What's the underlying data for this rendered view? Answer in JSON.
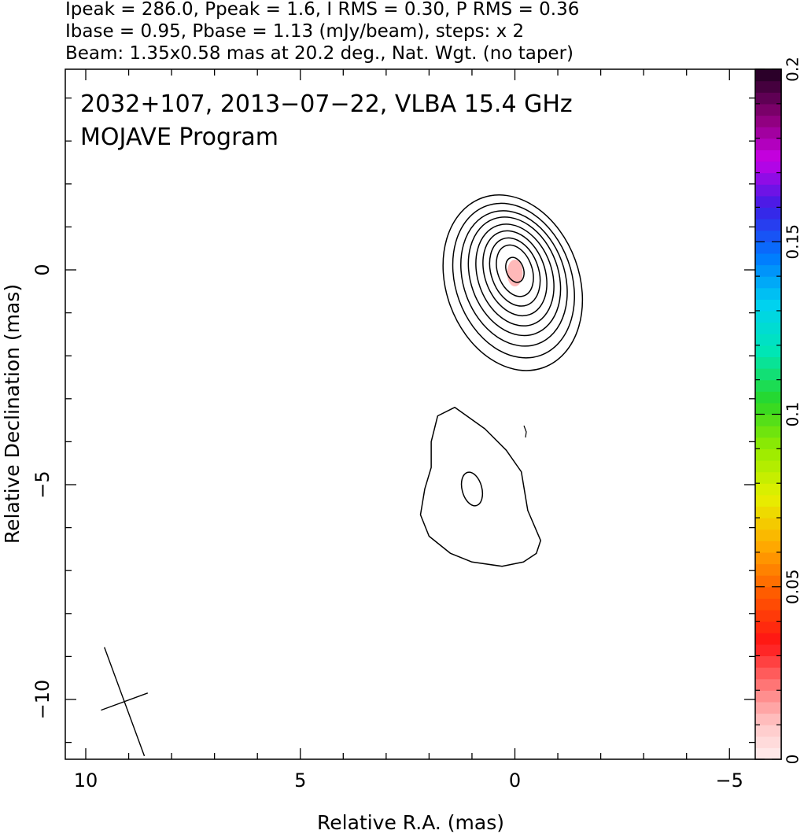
{
  "header": {
    "line1": "Ipeak = 286.0, Ppeak = 1.6, I RMS = 0.30, P RMS = 0.36",
    "line2": "Ibase = 0.95, Pbase = 1.13 (mJy/beam), steps: x 2",
    "line3": "Beam: 1.35x0.58 mas at 20.2 deg., Nat. Wgt. (no taper)"
  },
  "plot_title": {
    "line1": "2032+107, 2013−07−22, VLBA 15.4 GHz",
    "line2": "MOJAVE Program"
  },
  "chart_data": {
    "type": "contour",
    "xlabel": "Relative R.A. (mas)",
    "ylabel": "Relative Declination (mas)",
    "xlim": [
      10.5,
      -6.3
    ],
    "ylim": [
      -11.3,
      4.7
    ],
    "x_inverted": true,
    "x_ticks": [
      {
        "value": 10,
        "label": "10"
      },
      {
        "value": 5,
        "label": "5"
      },
      {
        "value": 0,
        "label": "0"
      },
      {
        "value": -5,
        "label": "−5"
      }
    ],
    "y_ticks": [
      {
        "value": 0,
        "label": "0"
      },
      {
        "value": -5,
        "label": "−5"
      },
      {
        "value": -10,
        "label": "−10"
      }
    ],
    "beam": {
      "major_mas": 1.35,
      "minor_mas": 0.58,
      "pa_deg": 20.2,
      "center": [
        9.1,
        -10.05
      ]
    },
    "core_contours": [
      {
        "cx": 0.05,
        "cy": -0.3,
        "a": 1.55,
        "b": 2.1,
        "rot_deg": 20
      },
      {
        "cx": 0.03,
        "cy": -0.25,
        "a": 1.35,
        "b": 1.85,
        "rot_deg": 20
      },
      {
        "cx": 0.02,
        "cy": -0.2,
        "a": 1.18,
        "b": 1.62,
        "rot_deg": 20
      },
      {
        "cx": 0.01,
        "cy": -0.15,
        "a": 1.02,
        "b": 1.42,
        "rot_deg": 20
      },
      {
        "cx": 0.0,
        "cy": -0.12,
        "a": 0.86,
        "b": 1.22,
        "rot_deg": 20
      },
      {
        "cx": 0.0,
        "cy": -0.08,
        "a": 0.7,
        "b": 1.02,
        "rot_deg": 20
      },
      {
        "cx": 0.0,
        "cy": -0.05,
        "a": 0.55,
        "b": 0.82,
        "rot_deg": 20
      },
      {
        "cx": 0.0,
        "cy": -0.02,
        "a": 0.4,
        "b": 0.62,
        "rot_deg": 20
      },
      {
        "cx": 0.0,
        "cy": 0.0,
        "a": 0.2,
        "b": 0.3,
        "rot_deg": 20
      }
    ],
    "jet_component": {
      "outer": [
        [
          1.4,
          -3.2
        ],
        [
          0.7,
          -3.7
        ],
        [
          0.2,
          -4.2
        ],
        [
          -0.15,
          -4.7
        ],
        [
          -0.3,
          -5.6
        ],
        [
          -0.6,
          -6.3
        ],
        [
          -0.5,
          -6.6
        ],
        [
          -0.2,
          -6.8
        ],
        [
          0.3,
          -6.9
        ],
        [
          1.0,
          -6.8
        ],
        [
          1.5,
          -6.6
        ],
        [
          2.0,
          -6.2
        ],
        [
          2.2,
          -5.7
        ],
        [
          2.1,
          -5.1
        ],
        [
          1.95,
          -4.6
        ],
        [
          1.95,
          -4.0
        ],
        [
          1.8,
          -3.4
        ]
      ],
      "inner": {
        "cx": 1.0,
        "cy": -5.1,
        "a": 0.23,
        "b": 0.4,
        "rot_deg": 15
      }
    },
    "polarization_pixels": [
      {
        "x": 0.0,
        "y": 0.0
      }
    ],
    "colorbar": {
      "min": 0,
      "max": 0.2,
      "tick_labels": [
        {
          "value": 0,
          "label": "0"
        },
        {
          "value": 0.05,
          "label": "0.05"
        },
        {
          "value": 0.1,
          "label": "0.1"
        },
        {
          "value": 0.15,
          "label": "0.15"
        },
        {
          "value": 0.2,
          "label": "0.2"
        }
      ]
    }
  }
}
